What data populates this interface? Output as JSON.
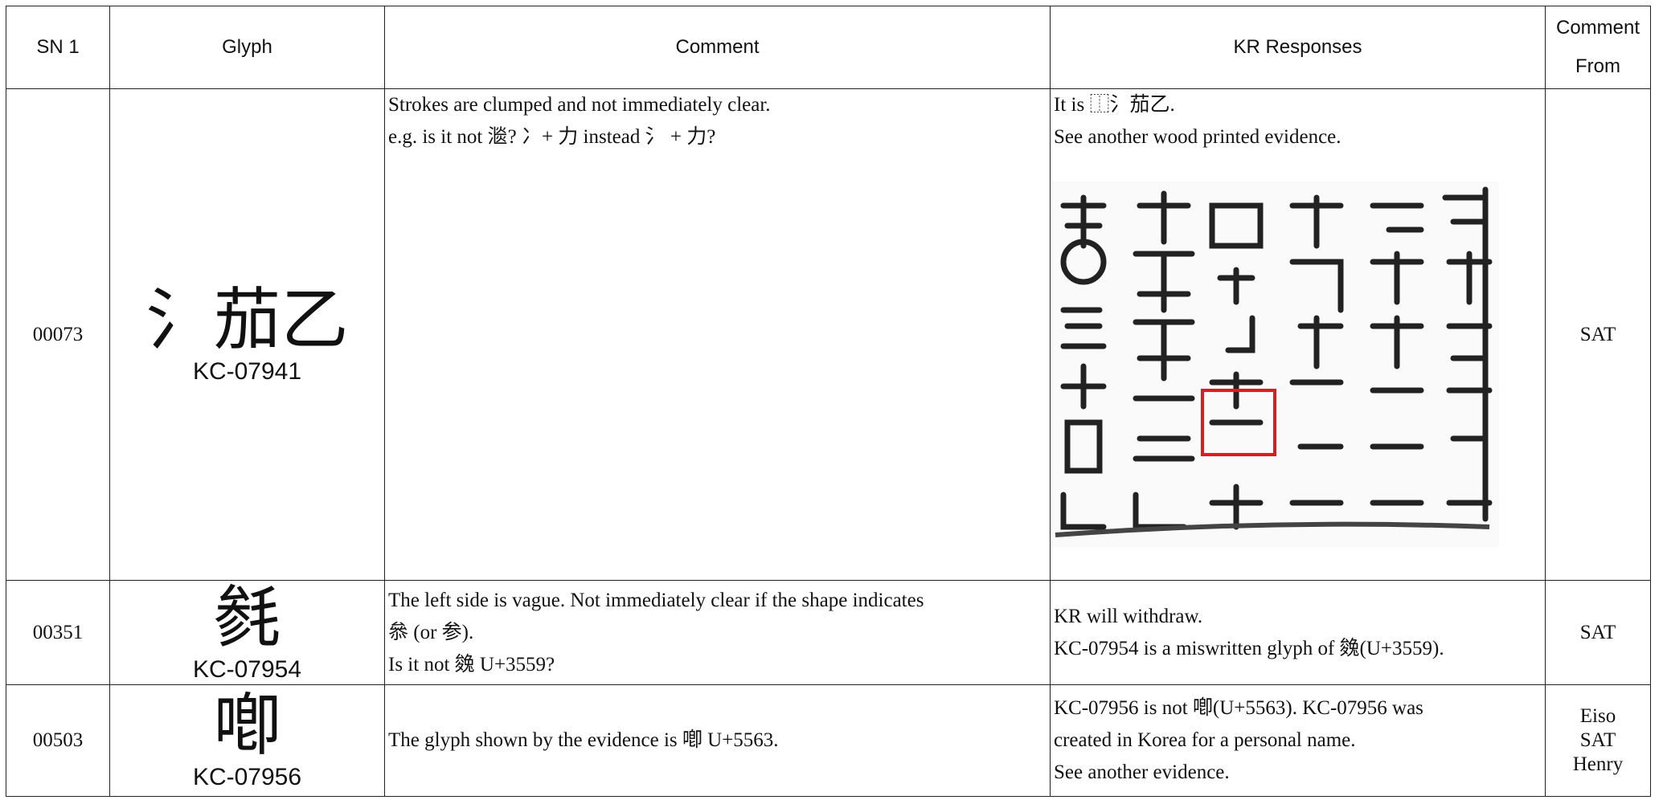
{
  "table": {
    "header": [
      "SN 1",
      "Glyph",
      "Comment",
      "KR Responses",
      "Comment From"
    ],
    "rows": [
      {
        "sn": "00073",
        "glyph": "氵茄乙",
        "code": "KC-07941",
        "comment": [
          "Strokes are clumped and not immediately clear.",
          "e.g. is it not 㴴?  冫+  力  instead  氵 +  力?"
        ],
        "responses": [
          "It is ⿰氵茄乙.",
          "See another wood printed evidence."
        ],
        "from": [
          "SAT"
        ]
      },
      {
        "sn": "00351",
        "glyph": "毵",
        "code": "KC-07954",
        "comment": [
          "The left side is vague. Not immediately clear if the shape indicates",
          "叅  (or  参).",
          "Is it not  㕙  U+3559?"
        ],
        "responses": [
          "KR will withdraw.",
          "KC-07954 is a miswritten glyph of  㕙(U+3559)."
        ],
        "from": [
          "SAT"
        ]
      },
      {
        "sn": "00503",
        "glyph": "喞",
        "code": "KC-07956",
        "comment": [
          "The glyph shown by the evidence is  喞   U+5563."
        ],
        "responses": [
          "KC-07956 is not  喞(U+5563). KC-07956 was",
          "created in Korea for a personal name.",
          "See another evidence."
        ],
        "from": [
          "Eiso",
          "SAT",
          "Henry"
        ]
      }
    ]
  }
}
